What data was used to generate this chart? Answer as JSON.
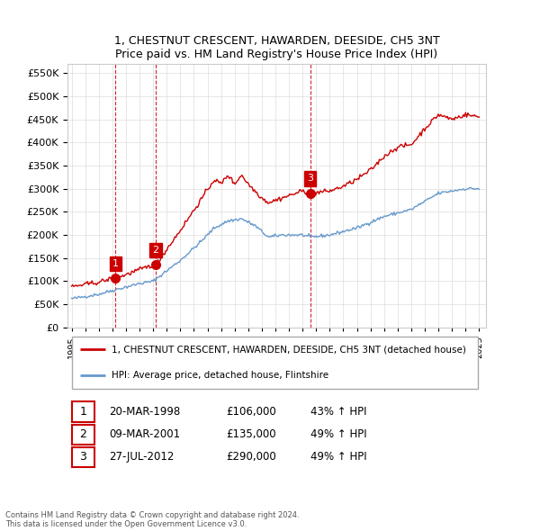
{
  "title": "1, CHESTNUT CRESCENT, HAWARDEN, DEESIDE, CH5 3NT",
  "subtitle": "Price paid vs. HM Land Registry's House Price Index (HPI)",
  "ytick_values": [
    0,
    50000,
    100000,
    150000,
    200000,
    250000,
    300000,
    350000,
    400000,
    450000,
    500000,
    550000
  ],
  "sales": [
    {
      "date_num": 1998.22,
      "price": 106000,
      "label": "1"
    },
    {
      "date_num": 2001.18,
      "price": 135000,
      "label": "2"
    },
    {
      "date_num": 2012.57,
      "price": 290000,
      "label": "3"
    }
  ],
  "sale_labels": [
    {
      "num": "1",
      "date": "20-MAR-1998",
      "price": "£106,000",
      "hpi": "43% ↑ HPI"
    },
    {
      "num": "2",
      "date": "09-MAR-2001",
      "price": "£135,000",
      "hpi": "49% ↑ HPI"
    },
    {
      "num": "3",
      "date": "27-JUL-2012",
      "price": "£290,000",
      "hpi": "49% ↑ HPI"
    }
  ],
  "legend_line1": "1, CHESTNUT CRESCENT, HAWARDEN, DEESIDE, CH5 3NT (detached house)",
  "legend_line2": "HPI: Average price, detached house, Flintshire",
  "footer1": "Contains HM Land Registry data © Crown copyright and database right 2024.",
  "footer2": "This data is licensed under the Open Government Licence v3.0.",
  "bg_color": "#ffffff",
  "grid_color": "#dddddd",
  "red_line_color": "#cc0000",
  "blue_line_color": "#6699cc",
  "vline_color": "#cc0000"
}
